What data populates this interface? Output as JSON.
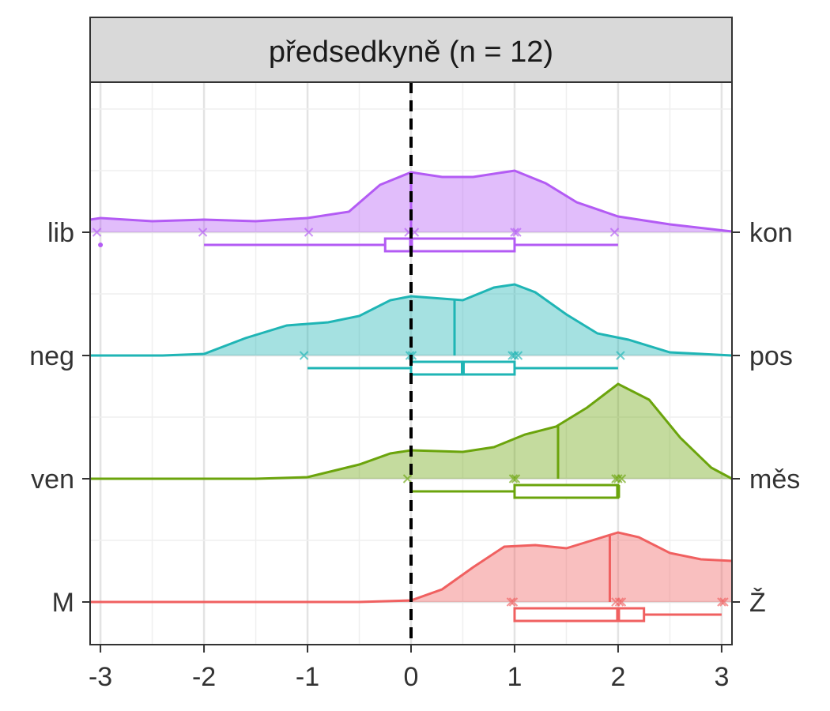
{
  "chart_data": {
    "type": "ridgeline",
    "title": "předsedkyně (n = 12)",
    "xlim": [
      -3.1,
      3.1
    ],
    "x_ticks": [
      -3,
      -2,
      -1,
      0,
      1,
      2,
      3
    ],
    "x_tick_labels": [
      "-3",
      "-2",
      "-1",
      "0",
      "1",
      "2",
      "3"
    ],
    "reference_line_x": 0,
    "grid": true,
    "series": [
      {
        "left_label": "lib",
        "right_label": "kon",
        "color": "#B35BF4",
        "mean": 0.0,
        "box": {
          "min": -2,
          "q1": -0.25,
          "median": 0,
          "q3": 1,
          "max": 2
        },
        "outliers": [
          -3
        ],
        "points": [
          -3,
          -2,
          -1,
          0,
          0,
          1,
          1,
          2
        ],
        "density": [
          [
            -3.1,
            0.16
          ],
          [
            -3.0,
            0.18
          ],
          [
            -2.5,
            0.14
          ],
          [
            -2.0,
            0.16
          ],
          [
            -1.5,
            0.14
          ],
          [
            -1.0,
            0.18
          ],
          [
            -0.6,
            0.26
          ],
          [
            -0.3,
            0.6
          ],
          [
            0.0,
            0.76
          ],
          [
            0.3,
            0.7
          ],
          [
            0.6,
            0.7
          ],
          [
            1.0,
            0.78
          ],
          [
            1.3,
            0.62
          ],
          [
            1.6,
            0.38
          ],
          [
            2.0,
            0.2
          ],
          [
            2.5,
            0.1
          ],
          [
            3.1,
            0.01
          ]
        ]
      },
      {
        "left_label": "neg",
        "right_label": "pos",
        "color": "#1FB5B5",
        "mean": 0.42,
        "box": {
          "min": -1,
          "q1": 0,
          "median": 0.5,
          "q3": 1,
          "max": 2
        },
        "outliers": [],
        "points": [
          -1,
          0,
          0,
          1,
          1,
          1,
          2
        ],
        "density": [
          [
            -3.1,
            0.0
          ],
          [
            -2.4,
            0.0
          ],
          [
            -2.0,
            0.02
          ],
          [
            -1.6,
            0.22
          ],
          [
            -1.2,
            0.38
          ],
          [
            -0.8,
            0.42
          ],
          [
            -0.5,
            0.5
          ],
          [
            -0.2,
            0.7
          ],
          [
            0.0,
            0.75
          ],
          [
            0.3,
            0.72
          ],
          [
            0.5,
            0.7
          ],
          [
            0.8,
            0.86
          ],
          [
            1.0,
            0.9
          ],
          [
            1.2,
            0.8
          ],
          [
            1.5,
            0.52
          ],
          [
            1.8,
            0.28
          ],
          [
            2.1,
            0.2
          ],
          [
            2.5,
            0.04
          ],
          [
            3.1,
            0.0
          ]
        ]
      },
      {
        "left_label": "ven",
        "right_label": "měs",
        "color": "#6BA40C",
        "mean": 1.42,
        "box": {
          "min": 0,
          "q1": 1,
          "median": 2,
          "q3": 2,
          "max": 2
        },
        "outliers": [],
        "points": [
          0,
          1,
          1,
          2,
          2,
          2
        ],
        "density": [
          [
            -3.1,
            0.0
          ],
          [
            -1.5,
            0.0
          ],
          [
            -1.0,
            0.02
          ],
          [
            -0.5,
            0.18
          ],
          [
            -0.2,
            0.32
          ],
          [
            0.0,
            0.36
          ],
          [
            0.5,
            0.34
          ],
          [
            0.8,
            0.4
          ],
          [
            1.1,
            0.56
          ],
          [
            1.4,
            0.66
          ],
          [
            1.7,
            0.9
          ],
          [
            2.0,
            1.2
          ],
          [
            2.3,
            1.0
          ],
          [
            2.6,
            0.52
          ],
          [
            2.9,
            0.14
          ],
          [
            3.1,
            0.0
          ]
        ]
      },
      {
        "left_label": "M",
        "right_label": "Ž",
        "color": "#F06060",
        "mean": 1.92,
        "box": {
          "min": 1,
          "q1": 1,
          "median": 2,
          "q3": 2.25,
          "max": 3
        },
        "outliers": [],
        "points": [
          1,
          1,
          2,
          2,
          2,
          3,
          3
        ],
        "density": [
          [
            -3.1,
            0.0
          ],
          [
            -0.5,
            0.0
          ],
          [
            0.0,
            0.02
          ],
          [
            0.3,
            0.16
          ],
          [
            0.6,
            0.44
          ],
          [
            0.9,
            0.7
          ],
          [
            1.2,
            0.72
          ],
          [
            1.5,
            0.68
          ],
          [
            1.8,
            0.8
          ],
          [
            2.0,
            0.88
          ],
          [
            2.2,
            0.82
          ],
          [
            2.5,
            0.62
          ],
          [
            2.8,
            0.54
          ],
          [
            3.1,
            0.52
          ]
        ]
      }
    ]
  }
}
